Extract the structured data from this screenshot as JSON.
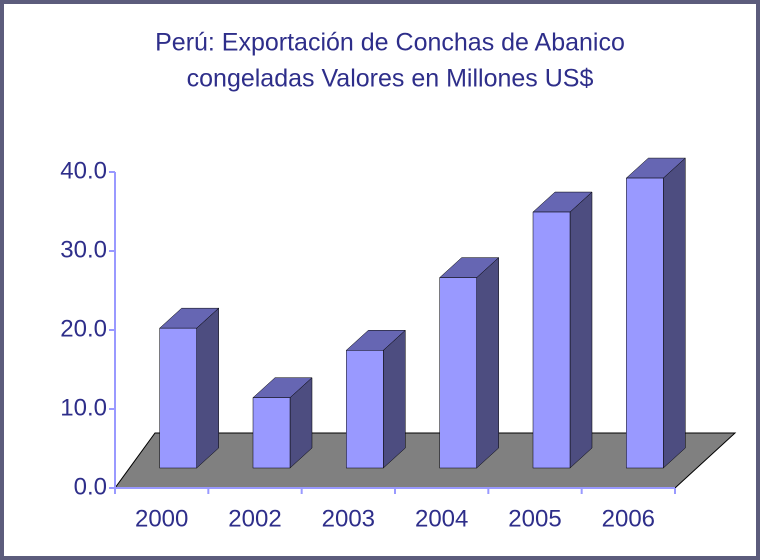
{
  "chart_data": {
    "type": "bar3d",
    "title": [
      "Perú: Exportación de Conchas de Abanico",
      "congeladas Valores en Millones US$"
    ],
    "categories": [
      "2000",
      "2002",
      "2003",
      "2004",
      "2005",
      "2006"
    ],
    "values": [
      17.7,
      8.9,
      14.9,
      24.1,
      32.4,
      36.7
    ],
    "color": "#9999ff",
    "ylim": [
      0,
      40
    ],
    "yticks": [
      {
        "value": 0,
        "label": "0.0"
      },
      {
        "value": 10,
        "label": "10.0"
      },
      {
        "value": 20,
        "label": "20.0"
      },
      {
        "value": 30,
        "label": "30.0"
      },
      {
        "value": 40,
        "label": "40.0"
      }
    ]
  }
}
